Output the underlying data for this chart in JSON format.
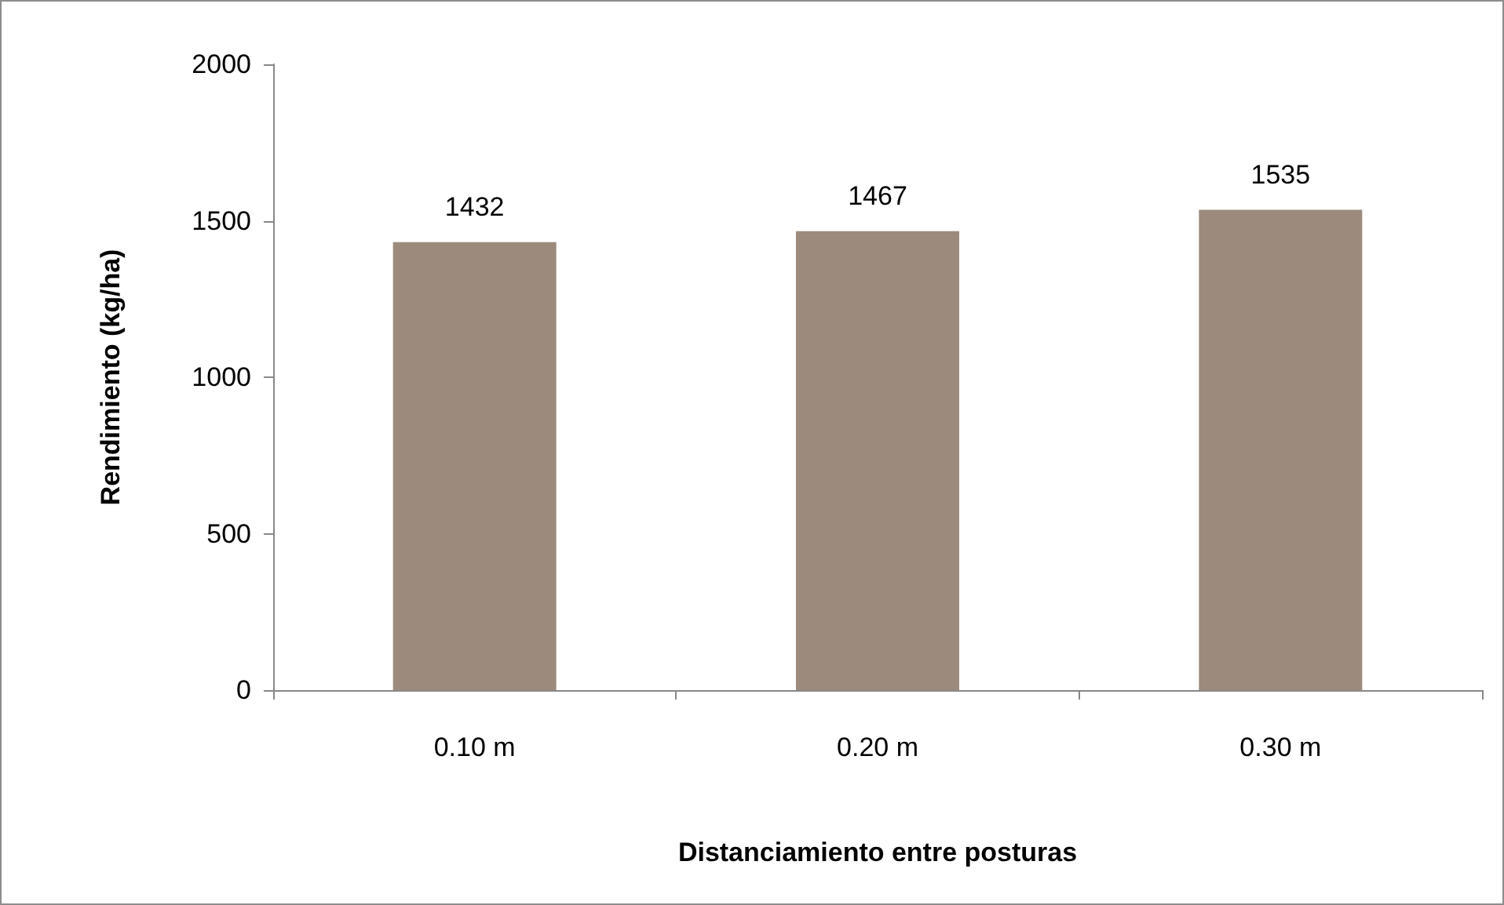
{
  "chart_data": {
    "type": "bar",
    "xlabel": "Distanciamiento entre posturas",
    "ylabel": "Rendimiento (kg/ha)",
    "categories": [
      "0.10 m",
      "0.20 m",
      "0.30 m"
    ],
    "values": [
      1432,
      1467,
      1535
    ],
    "color": "#9c8b7c",
    "ylim": [
      0,
      2000
    ],
    "yticks": [
      0,
      500,
      1000,
      1500,
      2000
    ],
    "grid": false,
    "data_labels": true
  }
}
